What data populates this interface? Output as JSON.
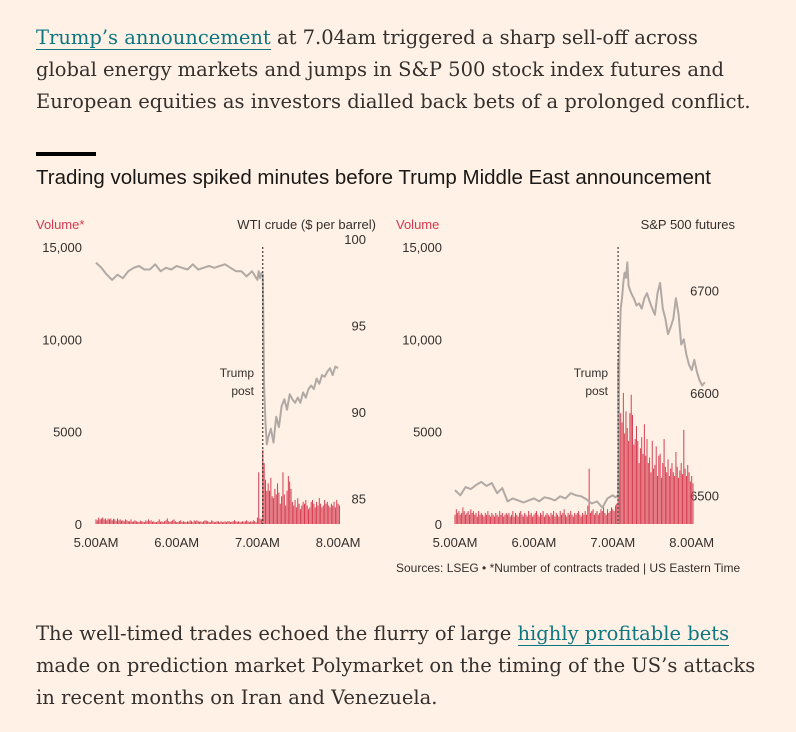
{
  "intro": {
    "link_text": "Trump’s announcement",
    "text": " at 7.04am triggered a sharp sell-off across global energy markets and jumps in S&P 500 stock index futures and European equities as investors dialled back bets of a prolonged conflict."
  },
  "chart_title": "Trading volumes spiked minutes before Trump Middle East announcement",
  "source": "Sources: LSEG • *Number of contracts traded | US Eastern Time",
  "outro": {
    "before": "The well-timed trades echoed the flurry of large ",
    "link_text": "highly profitable bets",
    "after": " made on prediction market Polymarket on the timing of the US’s attacks in recent months on Iran and Venezuela."
  },
  "colors": {
    "volume": "#d5384e",
    "price": "#b0a9a5",
    "text": "#33302e",
    "link": "#0d7680",
    "background": "#fff1e5"
  },
  "chart_data": [
    {
      "type": "bar+line",
      "left_axis_label": "Volume*",
      "right_axis_label": "WTI crude ($ per barrel)",
      "annotation": "Trump post",
      "annotation_time_min": 124,
      "x_ticks": [
        {
          "label": "5.00AM",
          "t": 0
        },
        {
          "label": "6.00AM",
          "t": 60
        },
        {
          "label": "7.00AM",
          "t": 120
        },
        {
          "label": "8.00AM",
          "t": 180
        }
      ],
      "x_range_min": [
        0,
        180
      ],
      "y_left": {
        "range": [
          0,
          15000
        ],
        "ticks": [
          {
            "label": "15,000",
            "v": 15000
          },
          {
            "label": "10,000",
            "v": 10000
          },
          {
            "label": "5000",
            "v": 5000
          },
          {
            "label": "0",
            "v": 0
          }
        ]
      },
      "y_right": {
        "range": [
          84,
          100
        ],
        "ticks": [
          {
            "label": "100",
            "v": 100
          },
          {
            "label": "95",
            "v": 95
          },
          {
            "label": "90",
            "v": 90
          },
          {
            "label": "85",
            "v": 85
          }
        ]
      },
      "volume_series": {
        "name": "Volume",
        "start_min": 0,
        "step_min": 1,
        "values": [
          250,
          200,
          350,
          250,
          300,
          350,
          250,
          300,
          200,
          300,
          250,
          300,
          200,
          280,
          250,
          150,
          300,
          200,
          250,
          180,
          200,
          150,
          250,
          200,
          150,
          150,
          250,
          120,
          150,
          200,
          150,
          120,
          100,
          180,
          150,
          120,
          100,
          200,
          150,
          250,
          150,
          200,
          120,
          150,
          100,
          100,
          150,
          250,
          120,
          150,
          100,
          150,
          200,
          300,
          150,
          120,
          150,
          200,
          250,
          150,
          100,
          120,
          150,
          200,
          100,
          150,
          120,
          100,
          150,
          120,
          200,
          150,
          100,
          200,
          150,
          200,
          150,
          120,
          150,
          100,
          150,
          200,
          180,
          150,
          120,
          100,
          200,
          150,
          100,
          120,
          150,
          150,
          100,
          150,
          100,
          120,
          150,
          100,
          150,
          150,
          100,
          120,
          150,
          200,
          150,
          120,
          150,
          100,
          120,
          150,
          120,
          150,
          200,
          150,
          100,
          150,
          120,
          200,
          150,
          100,
          350,
          2800,
          300,
          250,
          4000,
          3300,
          2400,
          1800,
          2200,
          1800,
          2500,
          1500,
          1400,
          1900,
          1600,
          2200,
          1700,
          1100,
          1500,
          2800,
          1600,
          1000,
          1800,
          2600,
          2300,
          1900,
          1200,
          1000,
          1300,
          900,
          1400,
          1100,
          800,
          1000,
          1200,
          1100,
          1300,
          1000,
          800,
          900,
          1200,
          1300,
          1100,
          900,
          1200,
          1000,
          1400,
          1100,
          900,
          1000,
          1300,
          1100,
          1200,
          1000,
          900,
          1100,
          1000,
          1200,
          900,
          1300,
          1100,
          1000
        ]
      },
      "price_series": {
        "name": "WTI crude",
        "points": [
          [
            0,
            99.1
          ],
          [
            4,
            98.8
          ],
          [
            8,
            98.4
          ],
          [
            12,
            98.1
          ],
          [
            16,
            98.4
          ],
          [
            20,
            98.2
          ],
          [
            24,
            98.6
          ],
          [
            28,
            98.8
          ],
          [
            32,
            98.9
          ],
          [
            36,
            98.7
          ],
          [
            40,
            98.7
          ],
          [
            44,
            99.0
          ],
          [
            48,
            98.6
          ],
          [
            52,
            98.8
          ],
          [
            56,
            98.7
          ],
          [
            60,
            98.9
          ],
          [
            64,
            98.8
          ],
          [
            68,
            98.7
          ],
          [
            72,
            99.0
          ],
          [
            76,
            98.7
          ],
          [
            80,
            98.8
          ],
          [
            84,
            98.9
          ],
          [
            88,
            98.8
          ],
          [
            92,
            98.9
          ],
          [
            96,
            99.0
          ],
          [
            100,
            98.8
          ],
          [
            104,
            98.6
          ],
          [
            108,
            98.6
          ],
          [
            112,
            98.3
          ],
          [
            116,
            98.6
          ],
          [
            120,
            98.1
          ],
          [
            121,
            98.6
          ],
          [
            122,
            98.2
          ],
          [
            123,
            98.5
          ],
          [
            124,
            98.4
          ],
          [
            125,
            92.0
          ],
          [
            126,
            89.8
          ],
          [
            127,
            88.6
          ],
          [
            128,
            89.0
          ],
          [
            130,
            89.5
          ],
          [
            132,
            88.7
          ],
          [
            134,
            90.2
          ],
          [
            136,
            89.6
          ],
          [
            138,
            90.8
          ],
          [
            140,
            91.2
          ],
          [
            142,
            90.6
          ],
          [
            144,
            91.5
          ],
          [
            146,
            91.2
          ],
          [
            148,
            91.0
          ],
          [
            150,
            91.3
          ],
          [
            152,
            91.0
          ],
          [
            154,
            91.6
          ],
          [
            156,
            91.3
          ],
          [
            158,
            91.8
          ],
          [
            160,
            92.0
          ],
          [
            162,
            91.8
          ],
          [
            164,
            92.4
          ],
          [
            166,
            92.1
          ],
          [
            168,
            92.6
          ],
          [
            170,
            92.5
          ],
          [
            172,
            92.8
          ],
          [
            174,
            93.0
          ],
          [
            176,
            92.6
          ],
          [
            178,
            93.1
          ],
          [
            180,
            93.0
          ]
        ]
      }
    },
    {
      "type": "bar+line",
      "left_axis_label": "Volume",
      "right_axis_label": "S&P 500 futures",
      "annotation": "Trump post",
      "annotation_time_min": 124,
      "x_ticks": [
        {
          "label": "5.00AM",
          "t": 0
        },
        {
          "label": "6.00AM",
          "t": 60
        },
        {
          "label": "7.00AM",
          "t": 120
        },
        {
          "label": "8.00AM",
          "t": 180
        }
      ],
      "x_range_min": [
        0,
        180
      ],
      "y_left": {
        "range": [
          0,
          15000
        ],
        "ticks": [
          {
            "label": "15,000",
            "v": 15000
          },
          {
            "label": "10,000",
            "v": 10000
          },
          {
            "label": "5000",
            "v": 5000
          },
          {
            "label": "0",
            "v": 0
          }
        ]
      },
      "y_right": {
        "range": [
          6480,
          6750
        ],
        "ticks": [
          {
            "label": "6700",
            "v": 6700
          },
          {
            "label": "6600",
            "v": 6600
          },
          {
            "label": "6500",
            "v": 6500
          }
        ]
      },
      "volume_series": {
        "name": "Volume",
        "start_min": 0,
        "step_min": 1,
        "values": [
          500,
          800,
          600,
          700,
          500,
          600,
          900,
          700,
          500,
          600,
          700,
          500,
          800,
          600,
          700,
          500,
          600,
          400,
          700,
          500,
          600,
          500,
          400,
          600,
          500,
          700,
          500,
          400,
          600,
          500,
          400,
          600,
          500,
          400,
          700,
          500,
          600,
          400,
          500,
          600,
          500,
          600,
          400,
          500,
          700,
          400,
          600,
          500,
          400,
          600,
          700,
          500,
          400,
          600,
          500,
          400,
          700,
          500,
          600,
          400,
          500,
          600,
          700,
          500,
          400,
          600,
          500,
          700,
          400,
          500,
          600,
          500,
          400,
          600,
          500,
          700,
          400,
          600,
          500,
          400,
          700,
          500,
          600,
          800,
          500,
          400,
          600,
          500,
          700,
          500,
          400,
          600,
          500,
          600,
          700,
          500,
          400,
          600,
          500,
          700,
          500,
          1000,
          3000,
          600,
          700,
          800,
          500,
          600,
          700,
          500,
          600,
          800,
          700,
          900,
          600,
          500,
          800,
          600,
          700,
          900,
          800,
          700,
          1000,
          1100,
          8800,
          6800,
          6000,
          5500,
          7100,
          4900,
          6100,
          5200,
          4500,
          6000,
          7000,
          5900,
          4300,
          4600,
          5300,
          4500,
          3300,
          4100,
          4700,
          3800,
          5400,
          3700,
          4600,
          3300,
          3600,
          2800,
          4500,
          3000,
          3200,
          4200,
          2600,
          3700,
          3800,
          2500,
          3300,
          4600,
          3100,
          2800,
          3500,
          2600,
          3000,
          3300,
          2800,
          2600,
          3900,
          3100,
          2500,
          2900,
          3300,
          2700,
          5100,
          3000,
          2600,
          3200,
          2800,
          2300,
          2600,
          2200
        ]
      },
      "price_series": {
        "name": "S&P 500 futures",
        "points": [
          [
            0,
            6513
          ],
          [
            4,
            6508
          ],
          [
            8,
            6516
          ],
          [
            12,
            6514
          ],
          [
            16,
            6518
          ],
          [
            20,
            6521
          ],
          [
            24,
            6517
          ],
          [
            28,
            6520
          ],
          [
            32,
            6510
          ],
          [
            36,
            6515
          ],
          [
            40,
            6502
          ],
          [
            44,
            6505
          ],
          [
            48,
            6503
          ],
          [
            52,
            6501
          ],
          [
            56,
            6503
          ],
          [
            60,
            6505
          ],
          [
            64,
            6502
          ],
          [
            68,
            6506
          ],
          [
            72,
            6505
          ],
          [
            76,
            6503
          ],
          [
            80,
            6507
          ],
          [
            84,
            6505
          ],
          [
            88,
            6510
          ],
          [
            92,
            6508
          ],
          [
            96,
            6507
          ],
          [
            100,
            6504
          ],
          [
            104,
            6500
          ],
          [
            108,
            6502
          ],
          [
            112,
            6496
          ],
          [
            116,
            6505
          ],
          [
            120,
            6508
          ],
          [
            122,
            6506
          ],
          [
            124,
            6508
          ],
          [
            125,
            6650
          ],
          [
            126,
            6690
          ],
          [
            127,
            6700
          ],
          [
            128,
            6715
          ],
          [
            129,
            6725
          ],
          [
            130,
            6720
          ],
          [
            131,
            6735
          ],
          [
            132,
            6712
          ],
          [
            134,
            6705
          ],
          [
            136,
            6700
          ],
          [
            138,
            6693
          ],
          [
            140,
            6695
          ],
          [
            142,
            6690
          ],
          [
            144,
            6700
          ],
          [
            146,
            6705
          ],
          [
            148,
            6697
          ],
          [
            150,
            6690
          ],
          [
            152,
            6684
          ],
          [
            154,
            6705
          ],
          [
            156,
            6715
          ],
          [
            158,
            6690
          ],
          [
            160,
            6680
          ],
          [
            162,
            6665
          ],
          [
            164,
            6672
          ],
          [
            166,
            6680
          ],
          [
            168,
            6700
          ],
          [
            170,
            6685
          ],
          [
            172,
            6655
          ],
          [
            174,
            6660
          ],
          [
            176,
            6645
          ],
          [
            178,
            6635
          ],
          [
            180,
            6630
          ],
          [
            182,
            6640
          ],
          [
            184,
            6628
          ],
          [
            186,
            6620
          ],
          [
            188,
            6615
          ],
          [
            190,
            6618
          ]
        ]
      }
    }
  ]
}
